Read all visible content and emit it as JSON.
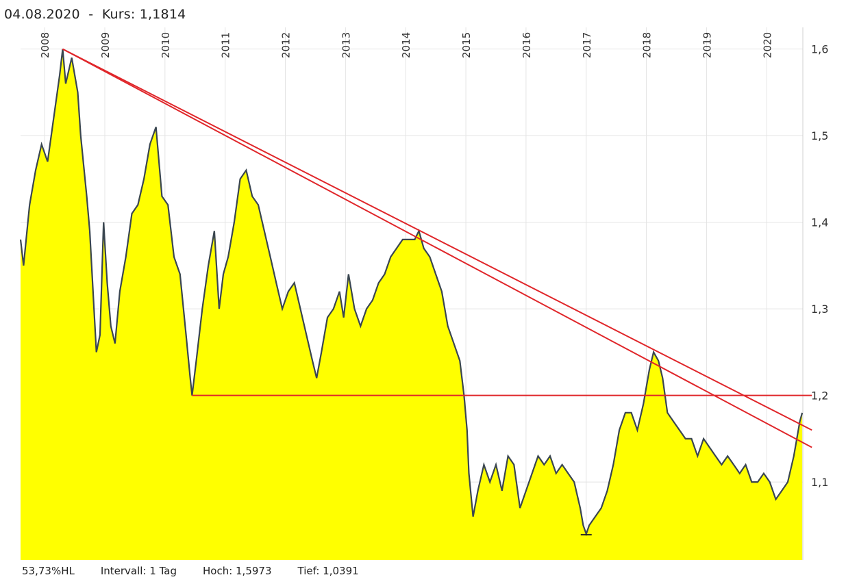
{
  "header": {
    "date": "04.08.2020",
    "separator": "-",
    "price_label": "Kurs: 1,1814"
  },
  "footer": {
    "hl": "53,73%HL",
    "interval": "Intervall: 1 Tag",
    "high": "Hoch: 1,5973",
    "low": "Tief: 1,0391"
  },
  "chart_data": {
    "type": "area",
    "title": "04.08.2020 - Kurs: 1,1814",
    "x_tick_labels": [
      "2008",
      "2009",
      "2010",
      "2011",
      "2012",
      "2013",
      "2014",
      "2015",
      "2016",
      "2017",
      "2018",
      "2019",
      "2020"
    ],
    "y_tick_labels": [
      "1,6",
      "1,5",
      "1,4",
      "1,3",
      "1,2",
      "1,1"
    ],
    "y_ticks": [
      1.6,
      1.5,
      1.4,
      1.3,
      1.2,
      1.1
    ],
    "xlim": [
      2007.6,
      2020.6
    ],
    "ylim": [
      1.01,
      1.625
    ],
    "grid": true,
    "fill_color": "#ffff00",
    "line_color": "#3a4650",
    "trendline_color": "#e0262a",
    "series": [
      {
        "values": [
          [
            2007.6,
            1.38
          ],
          [
            2007.65,
            1.35
          ],
          [
            2007.75,
            1.42
          ],
          [
            2007.85,
            1.46
          ],
          [
            2007.95,
            1.49
          ],
          [
            2008.05,
            1.47
          ],
          [
            2008.15,
            1.52
          ],
          [
            2008.25,
            1.57
          ],
          [
            2008.3,
            1.6
          ],
          [
            2008.35,
            1.56
          ],
          [
            2008.45,
            1.59
          ],
          [
            2008.55,
            1.55
          ],
          [
            2008.6,
            1.5
          ],
          [
            2008.7,
            1.43
          ],
          [
            2008.75,
            1.39
          ],
          [
            2008.82,
            1.3
          ],
          [
            2008.86,
            1.25
          ],
          [
            2008.92,
            1.27
          ],
          [
            2008.98,
            1.4
          ],
          [
            2009.04,
            1.33
          ],
          [
            2009.1,
            1.28
          ],
          [
            2009.17,
            1.26
          ],
          [
            2009.25,
            1.32
          ],
          [
            2009.35,
            1.36
          ],
          [
            2009.45,
            1.41
          ],
          [
            2009.55,
            1.42
          ],
          [
            2009.65,
            1.45
          ],
          [
            2009.75,
            1.49
          ],
          [
            2009.85,
            1.51
          ],
          [
            2009.95,
            1.43
          ],
          [
            2010.05,
            1.42
          ],
          [
            2010.15,
            1.36
          ],
          [
            2010.25,
            1.34
          ],
          [
            2010.35,
            1.27
          ],
          [
            2010.42,
            1.22
          ],
          [
            2010.45,
            1.2
          ],
          [
            2010.52,
            1.24
          ],
          [
            2010.62,
            1.3
          ],
          [
            2010.72,
            1.35
          ],
          [
            2010.82,
            1.39
          ],
          [
            2010.9,
            1.3
          ],
          [
            2010.97,
            1.34
          ],
          [
            2011.05,
            1.36
          ],
          [
            2011.15,
            1.4
          ],
          [
            2011.25,
            1.45
          ],
          [
            2011.35,
            1.46
          ],
          [
            2011.45,
            1.43
          ],
          [
            2011.55,
            1.42
          ],
          [
            2011.65,
            1.39
          ],
          [
            2011.75,
            1.36
          ],
          [
            2011.85,
            1.33
          ],
          [
            2011.95,
            1.3
          ],
          [
            2012.05,
            1.32
          ],
          [
            2012.15,
            1.33
          ],
          [
            2012.25,
            1.3
          ],
          [
            2012.35,
            1.27
          ],
          [
            2012.45,
            1.24
          ],
          [
            2012.52,
            1.22
          ],
          [
            2012.6,
            1.25
          ],
          [
            2012.7,
            1.29
          ],
          [
            2012.8,
            1.3
          ],
          [
            2012.9,
            1.32
          ],
          [
            2012.97,
            1.29
          ],
          [
            2013.05,
            1.34
          ],
          [
            2013.15,
            1.3
          ],
          [
            2013.25,
            1.28
          ],
          [
            2013.35,
            1.3
          ],
          [
            2013.45,
            1.31
          ],
          [
            2013.55,
            1.33
          ],
          [
            2013.65,
            1.34
          ],
          [
            2013.75,
            1.36
          ],
          [
            2013.85,
            1.37
          ],
          [
            2013.95,
            1.38
          ],
          [
            2014.05,
            1.38
          ],
          [
            2014.15,
            1.38
          ],
          [
            2014.22,
            1.39
          ],
          [
            2014.3,
            1.37
          ],
          [
            2014.4,
            1.36
          ],
          [
            2014.5,
            1.34
          ],
          [
            2014.6,
            1.32
          ],
          [
            2014.7,
            1.28
          ],
          [
            2014.8,
            1.26
          ],
          [
            2014.9,
            1.24
          ],
          [
            2014.97,
            1.2
          ],
          [
            2015.02,
            1.16
          ],
          [
            2015.05,
            1.11
          ],
          [
            2015.12,
            1.06
          ],
          [
            2015.2,
            1.09
          ],
          [
            2015.3,
            1.12
          ],
          [
            2015.4,
            1.1
          ],
          [
            2015.5,
            1.12
          ],
          [
            2015.6,
            1.09
          ],
          [
            2015.7,
            1.13
          ],
          [
            2015.8,
            1.12
          ],
          [
            2015.9,
            1.07
          ],
          [
            2016.0,
            1.09
          ],
          [
            2016.1,
            1.11
          ],
          [
            2016.2,
            1.13
          ],
          [
            2016.3,
            1.12
          ],
          [
            2016.4,
            1.13
          ],
          [
            2016.5,
            1.11
          ],
          [
            2016.6,
            1.12
          ],
          [
            2016.7,
            1.11
          ],
          [
            2016.8,
            1.1
          ],
          [
            2016.9,
            1.07
          ],
          [
            2016.95,
            1.05
          ],
          [
            2017.0,
            1.04
          ],
          [
            2017.05,
            1.05
          ],
          [
            2017.15,
            1.06
          ],
          [
            2017.25,
            1.07
          ],
          [
            2017.35,
            1.09
          ],
          [
            2017.45,
            1.12
          ],
          [
            2017.55,
            1.16
          ],
          [
            2017.65,
            1.18
          ],
          [
            2017.75,
            1.18
          ],
          [
            2017.85,
            1.16
          ],
          [
            2017.95,
            1.19
          ],
          [
            2018.05,
            1.23
          ],
          [
            2018.12,
            1.25
          ],
          [
            2018.2,
            1.24
          ],
          [
            2018.27,
            1.22
          ],
          [
            2018.35,
            1.18
          ],
          [
            2018.45,
            1.17
          ],
          [
            2018.55,
            1.16
          ],
          [
            2018.65,
            1.15
          ],
          [
            2018.75,
            1.15
          ],
          [
            2018.85,
            1.13
          ],
          [
            2018.95,
            1.15
          ],
          [
            2019.05,
            1.14
          ],
          [
            2019.15,
            1.13
          ],
          [
            2019.25,
            1.12
          ],
          [
            2019.35,
            1.13
          ],
          [
            2019.45,
            1.12
          ],
          [
            2019.55,
            1.11
          ],
          [
            2019.65,
            1.12
          ],
          [
            2019.75,
            1.1
          ],
          [
            2019.85,
            1.1
          ],
          [
            2019.95,
            1.11
          ],
          [
            2020.05,
            1.1
          ],
          [
            2020.15,
            1.08
          ],
          [
            2020.25,
            1.09
          ],
          [
            2020.35,
            1.1
          ],
          [
            2020.45,
            1.13
          ],
          [
            2020.55,
            1.17
          ],
          [
            2020.59,
            1.18
          ]
        ]
      }
    ],
    "trendlines": [
      {
        "x1": 2008.3,
        "y1": 1.6,
        "x2": 2020.75,
        "y2": 1.16
      },
      {
        "x1": 2008.3,
        "y1": 1.6,
        "x2": 2020.75,
        "y2": 1.14
      },
      {
        "x1": 2010.45,
        "y1": 1.2,
        "x2": 2020.75,
        "y2": 1.2
      }
    ],
    "low_marker": {
      "x": 2017.0,
      "y": 1.0391
    }
  }
}
